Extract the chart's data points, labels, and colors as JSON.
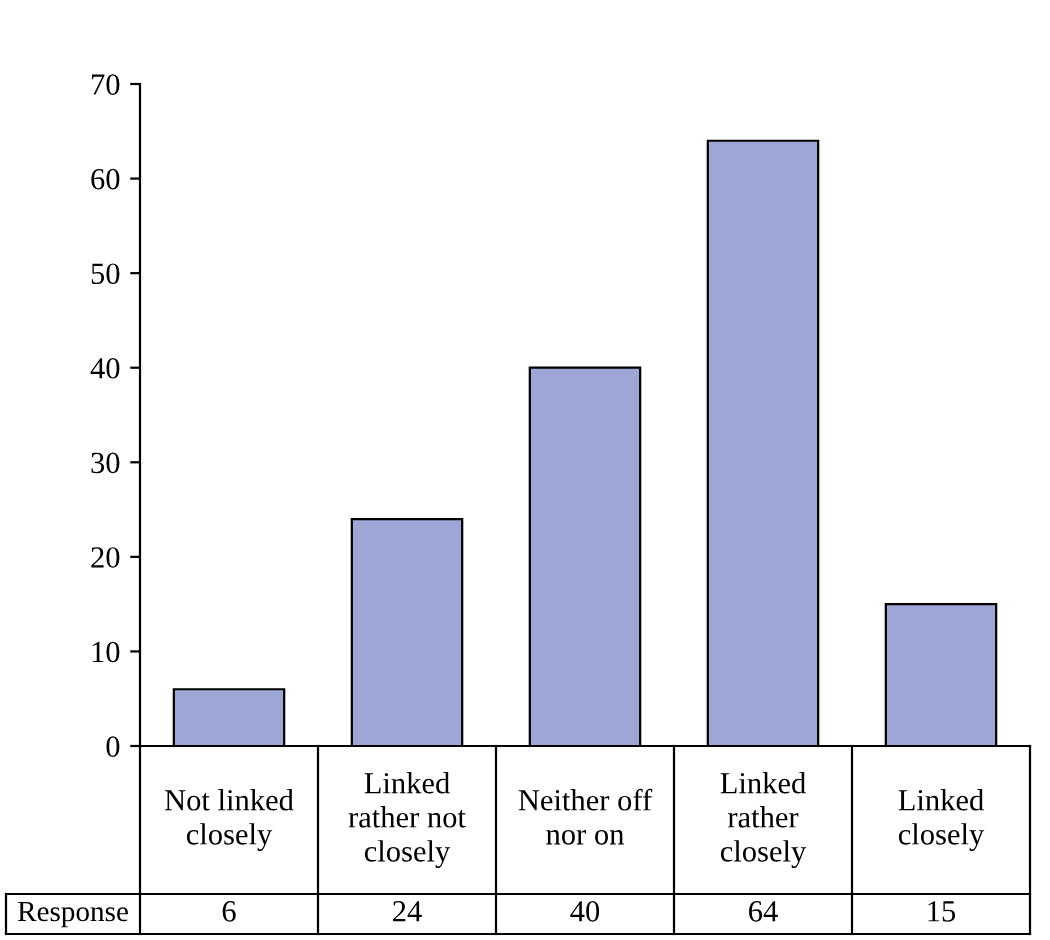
{
  "chart_data": {
    "type": "bar",
    "categories": [
      "Not linked closely",
      "Linked rather not closely",
      "Neither off nor on",
      "Linked rather closely",
      "Linked closely"
    ],
    "series": [
      {
        "name": "Response",
        "color": "#9da6d4",
        "values": [
          6,
          24,
          40,
          64,
          15
        ]
      }
    ],
    "ylim": [
      0,
      70
    ],
    "yticks": [
      0,
      10,
      20,
      30,
      40,
      50,
      60,
      70
    ],
    "grid": false,
    "legend": "bottom left",
    "data_labels": true
  }
}
